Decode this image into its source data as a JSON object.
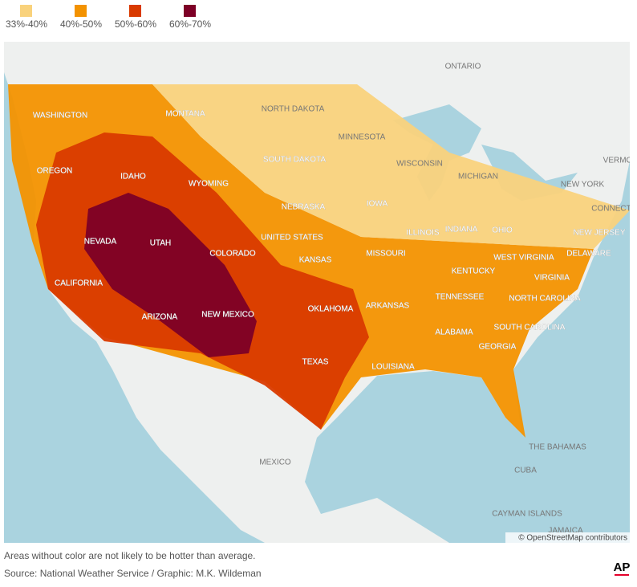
{
  "legend": [
    {
      "label": "33%-40%",
      "color": "#f9d27c"
    },
    {
      "label": "40%-50%",
      "color": "#f39200"
    },
    {
      "label": "50%-60%",
      "color": "#d93a00"
    },
    {
      "label": "60%-70%",
      "color": "#7d0026"
    }
  ],
  "map": {
    "labels": [
      "ONTARIO",
      "NORTH DAKOTA",
      "MINNESOTA",
      "WASHINGTON",
      "MONTANA",
      "SOUTH DAKOTA",
      "WISCONSIN",
      "MICHIGAN",
      "VERMO",
      "NEW YORK",
      "CONNECT",
      "OREGON",
      "IDAHO",
      "WYOMING",
      "IOWA",
      "NEBRASKA",
      "UNITED STATES",
      "ILLINOIS",
      "INDIANA",
      "OHIO",
      "NEW JERSEY",
      "NEVADA",
      "UTAH",
      "COLORADO",
      "KANSAS",
      "MISSOURI",
      "WEST VIRGINIA",
      "DELAWARE",
      "KENTUCKY",
      "VIRGINIA",
      "CALIFORNIA",
      "TENNESSEE",
      "NORTH CAROLINA",
      "OKLAHOMA",
      "ARKANSAS",
      "NEW MEXICO",
      "ARIZONA",
      "ALABAMA",
      "SOUTH CAROLINA",
      "GEORGIA",
      "TEXAS",
      "LOUISIANA",
      "THE BAHAMAS",
      "MEXICO",
      "CUBA",
      "CAYMAN ISLANDS",
      "JAMAICA"
    ],
    "attribution": "© OpenStreetMap contributors"
  },
  "footer": {
    "note": "Areas without color are not likely to be hotter than average.",
    "source": "Source: National Weather Service / Graphic: M.K. Wildeman",
    "logo": "AP"
  }
}
